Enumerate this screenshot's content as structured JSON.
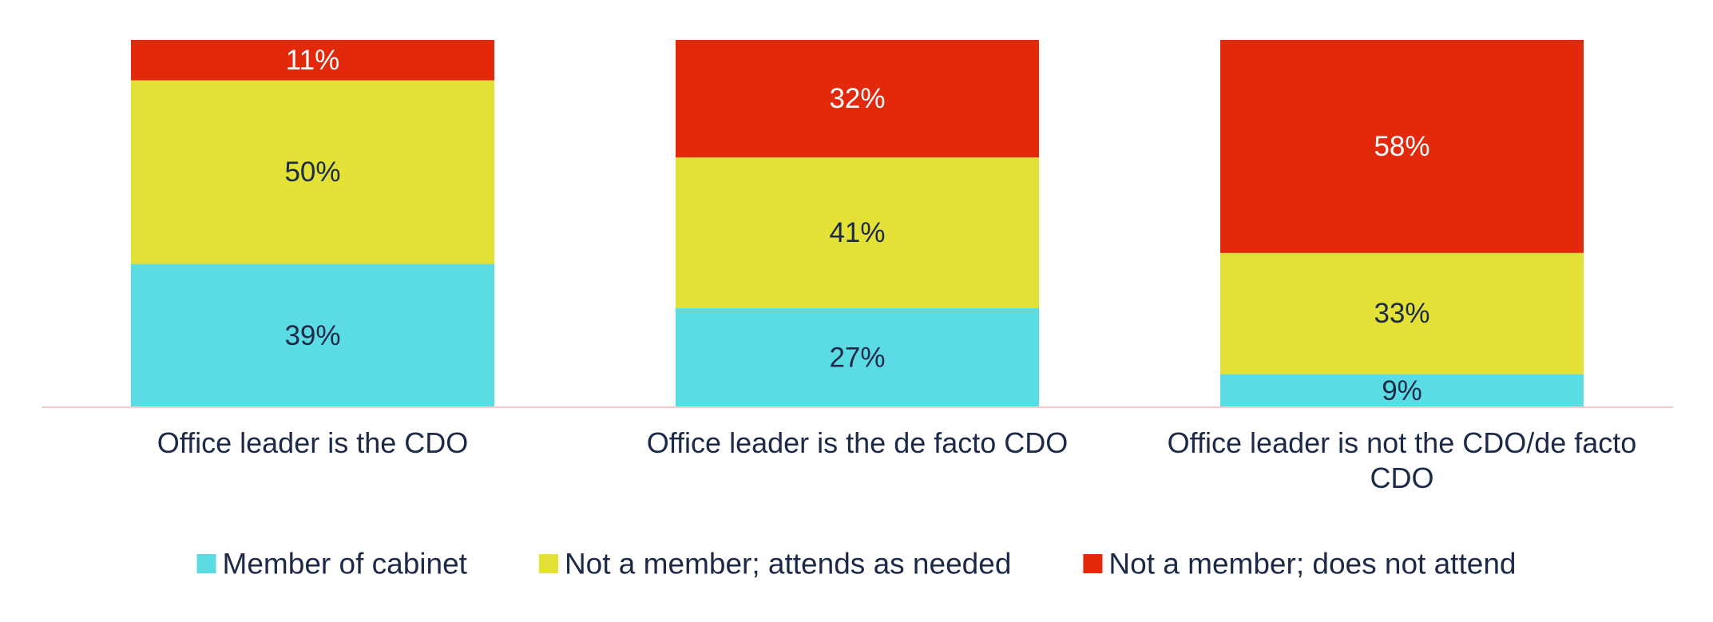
{
  "chart_data": {
    "type": "bar",
    "stacked": true,
    "categories": [
      "Office leader is the CDO",
      "Office leader is the de facto CDO",
      "Office leader is not the CDO/de facto CDO"
    ],
    "series": [
      {
        "name": "Member of cabinet",
        "values": [
          39,
          27,
          9
        ],
        "color": "#5bdce4",
        "label_color": "#1c2a47"
      },
      {
        "name": "Not a member; attends as needed",
        "values": [
          50,
          41,
          33
        ],
        "color": "#e3e036",
        "label_color": "#1c2a47"
      },
      {
        "name": "Not a member; does not attend",
        "values": [
          11,
          32,
          58
        ],
        "color": "#e2290c",
        "label_color": "#ffffff"
      }
    ],
    "value_suffix": "%",
    "ylim": [
      0,
      100
    ],
    "title": "",
    "xlabel": "",
    "ylabel": "",
    "grid": false,
    "legend_position": "bottom",
    "axis_color": "#f7c9c9"
  }
}
